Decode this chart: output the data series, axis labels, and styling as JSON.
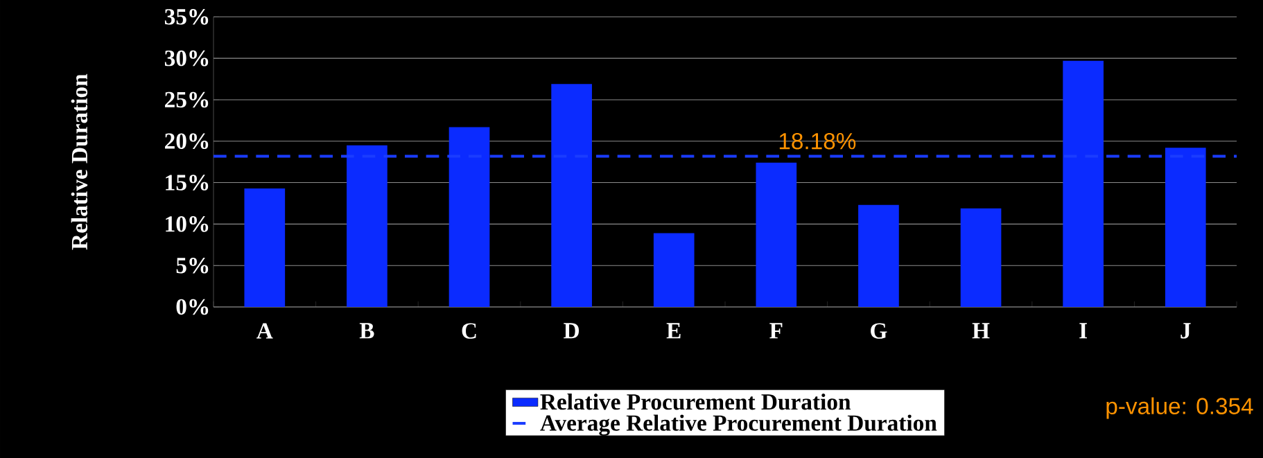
{
  "chart_data": {
    "type": "bar",
    "ylabel": "Relative Duration",
    "categories": [
      "A",
      "B",
      "C",
      "D",
      "E",
      "F",
      "G",
      "H",
      "I",
      "J"
    ],
    "series": [
      {
        "name": "Relative Procurement Duration",
        "color": "#0b2bff",
        "values": [
          14.3,
          19.5,
          21.7,
          26.9,
          8.9,
          17.4,
          12.3,
          11.9,
          29.7,
          19.2
        ]
      }
    ],
    "ylim": [
      0,
      35
    ],
    "yticks": [
      {
        "value": 0,
        "label": "0%"
      },
      {
        "value": 5,
        "label": "5%"
      },
      {
        "value": 10,
        "label": "10%"
      },
      {
        "value": 15,
        "label": "15%"
      },
      {
        "value": 20,
        "label": "20%"
      },
      {
        "value": 25,
        "label": "25%"
      },
      {
        "value": 30,
        "label": "30%"
      },
      {
        "value": 35,
        "label": "35%"
      }
    ],
    "ref_lines": [
      {
        "axis": "y",
        "value": 18.18,
        "label": "Average Relative Procurement Duration",
        "color": "#1a3cff",
        "line_style": "dashed"
      }
    ],
    "annotations": [
      {
        "text": "18.18%",
        "y": 18.18
      },
      "p-value:  0.354"
    ],
    "grid": "y",
    "legend": "bottom"
  }
}
